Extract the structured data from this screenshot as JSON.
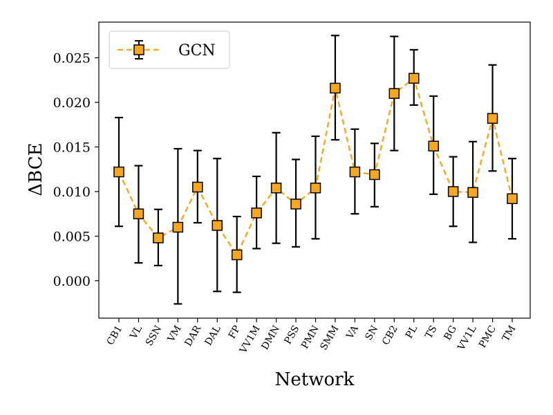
{
  "chart_data": {
    "type": "line",
    "xlabel": "Network",
    "ylabel": "ΔBCE",
    "categories": [
      "CB1",
      "VL",
      "SSN",
      "VM",
      "DAR",
      "DAL",
      "FP",
      "VV1M",
      "DMN",
      "PSS",
      "PMN",
      "SMM",
      "VA",
      "SN",
      "CB2",
      "PL",
      "TS",
      "BG",
      "VV1L",
      "PMC",
      "TM"
    ],
    "series": [
      {
        "name": "GCN",
        "color": "#f5a623",
        "values": [
          0.0122,
          0.0075,
          0.0048,
          0.006,
          0.0105,
          0.0062,
          0.0029,
          0.0076,
          0.0104,
          0.0086,
          0.0104,
          0.0216,
          0.0122,
          0.0119,
          0.021,
          0.0227,
          0.0151,
          0.01,
          0.0099,
          0.0182,
          0.0092
        ],
        "err_low": [
          0.0061,
          0.002,
          0.0017,
          -0.0026,
          0.0065,
          -0.0012,
          -0.0013,
          0.0036,
          0.0042,
          0.0038,
          0.0047,
          0.0158,
          0.0075,
          0.0083,
          0.0146,
          0.0197,
          0.0097,
          0.0061,
          0.0043,
          0.0123,
          0.0047
        ],
        "err_high": [
          0.0183,
          0.0129,
          0.008,
          0.0148,
          0.0146,
          0.0137,
          0.0072,
          0.0117,
          0.0166,
          0.0136,
          0.0162,
          0.0275,
          0.017,
          0.0154,
          0.0274,
          0.0259,
          0.0207,
          0.0139,
          0.0156,
          0.0242,
          0.0137
        ]
      }
    ],
    "yticks": [
      0.0,
      0.005,
      0.01,
      0.015,
      0.02,
      0.025
    ],
    "ytick_labels": [
      "0.000",
      "0.005",
      "0.010",
      "0.015",
      "0.020",
      "0.025"
    ],
    "ylim": [
      -0.0042,
      0.029
    ],
    "legend_position": "top-left",
    "grid": false
  }
}
